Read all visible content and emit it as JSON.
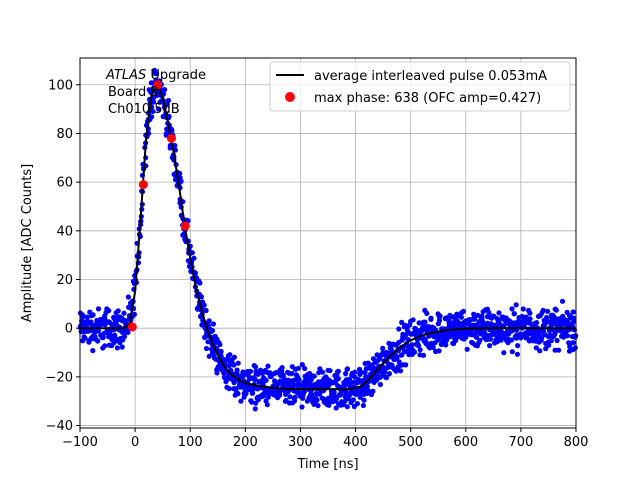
{
  "chart_data": {
    "type": "scatter",
    "title": "",
    "xlabel": "Time [ns]",
    "ylabel": "Amplitude [ADC Counts]",
    "xlim": [
      -100,
      800
    ],
    "ylim": [
      -41,
      111
    ],
    "xticks": [
      -100,
      0,
      100,
      200,
      300,
      400,
      500,
      600,
      700,
      800
    ],
    "yticks": [
      -40,
      -20,
      0,
      20,
      40,
      60,
      80,
      100
    ],
    "xtick_labels": [
      "−100",
      "0",
      "100",
      "200",
      "300",
      "400",
      "500",
      "600",
      "700",
      "800"
    ],
    "ytick_labels": [
      "−40",
      "−20",
      "0",
      "20",
      "40",
      "60",
      "80",
      "100"
    ],
    "grid": true,
    "legend_position": "upper right",
    "annotation": {
      "line1_italic": "ATLAS",
      "line1_rest": " Upgrade",
      "line2": "Board 0",
      "line3": "Ch010 5dB"
    },
    "series": [
      {
        "name": "average interleaved pulse 0.053mA",
        "kind": "line",
        "color": "#000000",
        "x": [
          -100,
          -20,
          -10,
          0,
          10,
          20,
          30,
          40,
          50,
          60,
          70,
          80,
          90,
          100,
          110,
          120,
          130,
          140,
          150,
          160,
          170,
          180,
          190,
          200,
          225,
          250,
          275,
          300,
          350,
          390,
          410,
          420,
          440,
          460,
          480,
          500,
          520,
          540,
          560,
          580,
          600,
          650,
          700,
          800
        ],
        "y": [
          0,
          0,
          2,
          15,
          45,
          78,
          96,
          100,
          95,
          84,
          72,
          58,
          42,
          29,
          17,
          8,
          0,
          -6,
          -11,
          -15,
          -18,
          -20,
          -21.5,
          -22.5,
          -23.8,
          -24.5,
          -25,
          -25,
          -25,
          -25,
          -24,
          -22,
          -17,
          -12,
          -8,
          -5,
          -3,
          -1.8,
          -1,
          -0.5,
          -0.2,
          0,
          0,
          0
        ]
      },
      {
        "name": "max phase: 638 (OFC amp=0.427)",
        "kind": "markers",
        "color": "#ff0000",
        "x": [
          -5,
          15,
          41,
          66,
          91
        ],
        "y": [
          0.5,
          59,
          100,
          78,
          42
        ]
      }
    ],
    "scatter_cloud": {
      "color": "#0000ff",
      "noise_spread_adc": 4,
      "note": "dense blue points scattered around the average pulse"
    }
  }
}
